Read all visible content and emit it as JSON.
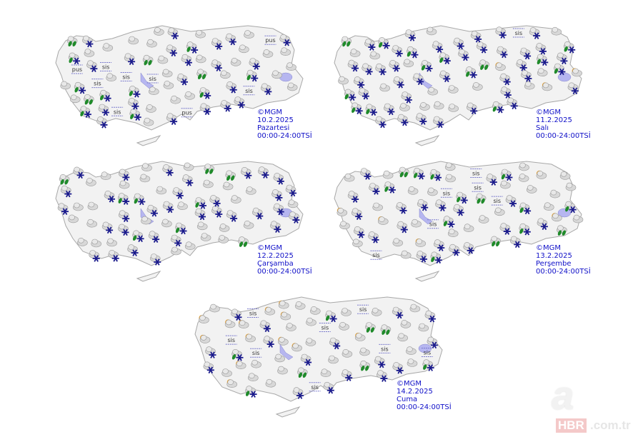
{
  "maps": [
    {
      "credit": "©MGM",
      "date": "10.2.2025",
      "day": "Pazartesi",
      "period": "00:00-24:00TSİ",
      "mix": {
        "cloud": 0.35,
        "snow": 0.3,
        "rain_snow": 0.15,
        "fog": 0.12,
        "sun": 0.03,
        "rain": 0.05
      }
    },
    {
      "credit": "©MGM",
      "date": "11.2.2025",
      "day": "Salı",
      "period": "00:00-24:00TSİ",
      "mix": {
        "cloud": 0.3,
        "snow": 0.4,
        "rain_snow": 0.15,
        "fog": 0.07,
        "sun": 0.03,
        "rain": 0.05
      }
    },
    {
      "credit": "©MGM",
      "date": "12.2.2025",
      "day": "Çarşamba",
      "period": "00:00-24:00TSİ",
      "mix": {
        "cloud": 0.35,
        "snow": 0.42,
        "rain_snow": 0.15,
        "fog": 0.0,
        "sun": 0.0,
        "rain": 0.08
      }
    },
    {
      "credit": "©MGM",
      "date": "13.2.2025",
      "day": "Perşembe",
      "period": "00:00-24:00TSİ",
      "mix": {
        "cloud": 0.35,
        "snow": 0.35,
        "rain_snow": 0.1,
        "fog": 0.08,
        "sun": 0.07,
        "rain": 0.05
      }
    },
    {
      "credit": "©MGM",
      "date": "14.2.2025",
      "day": "Cuma",
      "period": "00:00-24:00TSİ",
      "mix": {
        "cloud": 0.3,
        "snow": 0.3,
        "rain_snow": 0.1,
        "fog": 0.1,
        "sun": 0.15,
        "rain": 0.05
      }
    }
  ],
  "icon_types": {
    "cloud": "cloud-icon",
    "snow": "snow-icon",
    "rain_snow": "sleet-icon",
    "fog": "fog-icon",
    "sun": "partly-sunny-icon",
    "rain": "rain-icon"
  },
  "fog_text": "sis",
  "haze_text": "pus",
  "colors": {
    "land": "#f2f2f2",
    "border": "#a8a8a8",
    "lake": "#b6b6f0",
    "snow": "#1a1a8c",
    "rain": "#1f8a2a",
    "label": "#1010c8"
  },
  "watermark": {
    "letter": "a",
    "brand": "HBR",
    "domain": ".com.tr"
  }
}
